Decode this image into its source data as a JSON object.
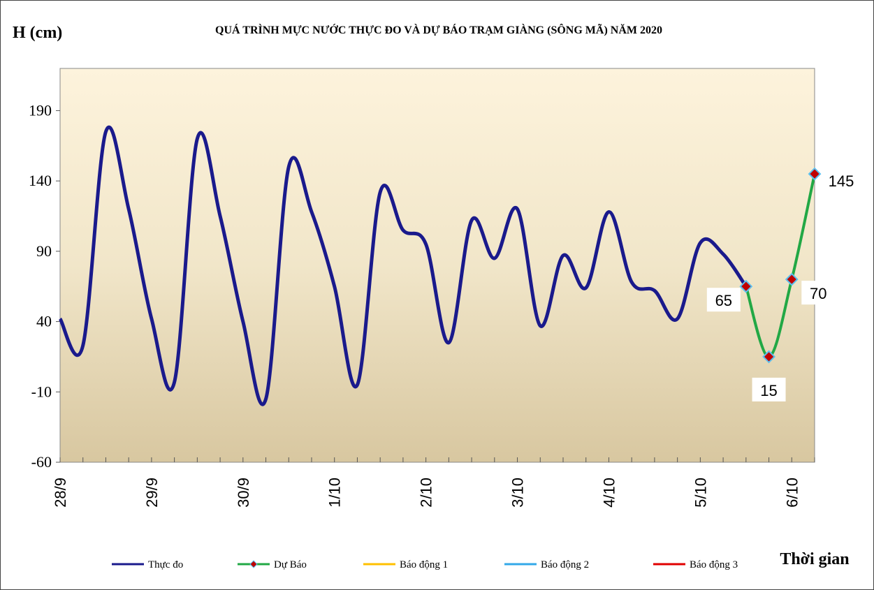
{
  "chart_data": {
    "type": "line",
    "title": "QUÁ TRÌNH MỰC NƯỚC THỰC ĐO VÀ DỰ BÁO TRẠM GIÀNG (SÔNG MÃ) NĂM 2020",
    "y_label": "H (cm)",
    "x_label": "Thời gian",
    "categories": [
      "28/9",
      null,
      null,
      null,
      "29/9",
      null,
      null,
      null,
      "30/9",
      null,
      null,
      null,
      "1/10",
      null,
      null,
      null,
      "2/10",
      null,
      null,
      null,
      "3/10",
      null,
      null,
      null,
      "4/10",
      null,
      null,
      null,
      "5/10",
      null,
      null,
      null,
      "6/10",
      null
    ],
    "ylim": [
      -60,
      220
    ],
    "yticks": [
      -60,
      -10,
      40,
      90,
      140,
      190
    ],
    "series": [
      {
        "name": "Thực đo",
        "color": "#1a1a8c",
        "values": [
          42,
          23,
          175,
          120,
          42,
          -3,
          170,
          115,
          40,
          -15,
          150,
          118,
          65,
          -5,
          132,
          105,
          95,
          25,
          112,
          85,
          120,
          37,
          87,
          64,
          118,
          68,
          62,
          42,
          96,
          88,
          65,
          null,
          null,
          null
        ]
      },
      {
        "name": "Dự Báo",
        "color": "#22a845",
        "values": [
          null,
          null,
          null,
          null,
          null,
          null,
          null,
          null,
          null,
          null,
          null,
          null,
          null,
          null,
          null,
          null,
          null,
          null,
          null,
          null,
          null,
          null,
          null,
          null,
          null,
          null,
          null,
          null,
          null,
          null,
          65,
          15,
          70,
          145
        ]
      },
      {
        "name": "Báo động 1",
        "color": "#ffc000",
        "values": [
          null,
          null,
          null,
          null,
          null,
          null,
          null,
          null,
          null,
          null,
          null,
          null,
          null,
          null,
          null,
          null,
          null,
          null,
          null,
          null,
          null,
          null,
          null,
          null,
          null,
          null,
          null,
          null,
          null,
          null,
          null,
          null,
          null,
          null
        ]
      },
      {
        "name": "Báo động 2",
        "color": "#33a8e8",
        "values": [
          null,
          null,
          null,
          null,
          null,
          null,
          null,
          null,
          null,
          null,
          null,
          null,
          null,
          null,
          null,
          null,
          null,
          null,
          null,
          null,
          null,
          null,
          null,
          null,
          null,
          null,
          null,
          null,
          null,
          null,
          null,
          null,
          null,
          null
        ]
      },
      {
        "name": "Báo động 3",
        "color": "#e00000",
        "values": [
          null,
          null,
          null,
          null,
          null,
          null,
          null,
          null,
          null,
          null,
          null,
          null,
          null,
          null,
          null,
          null,
          null,
          null,
          null,
          null,
          null,
          null,
          null,
          null,
          null,
          null,
          null,
          null,
          null,
          null,
          null,
          null,
          null,
          null
        ]
      }
    ]
  }
}
